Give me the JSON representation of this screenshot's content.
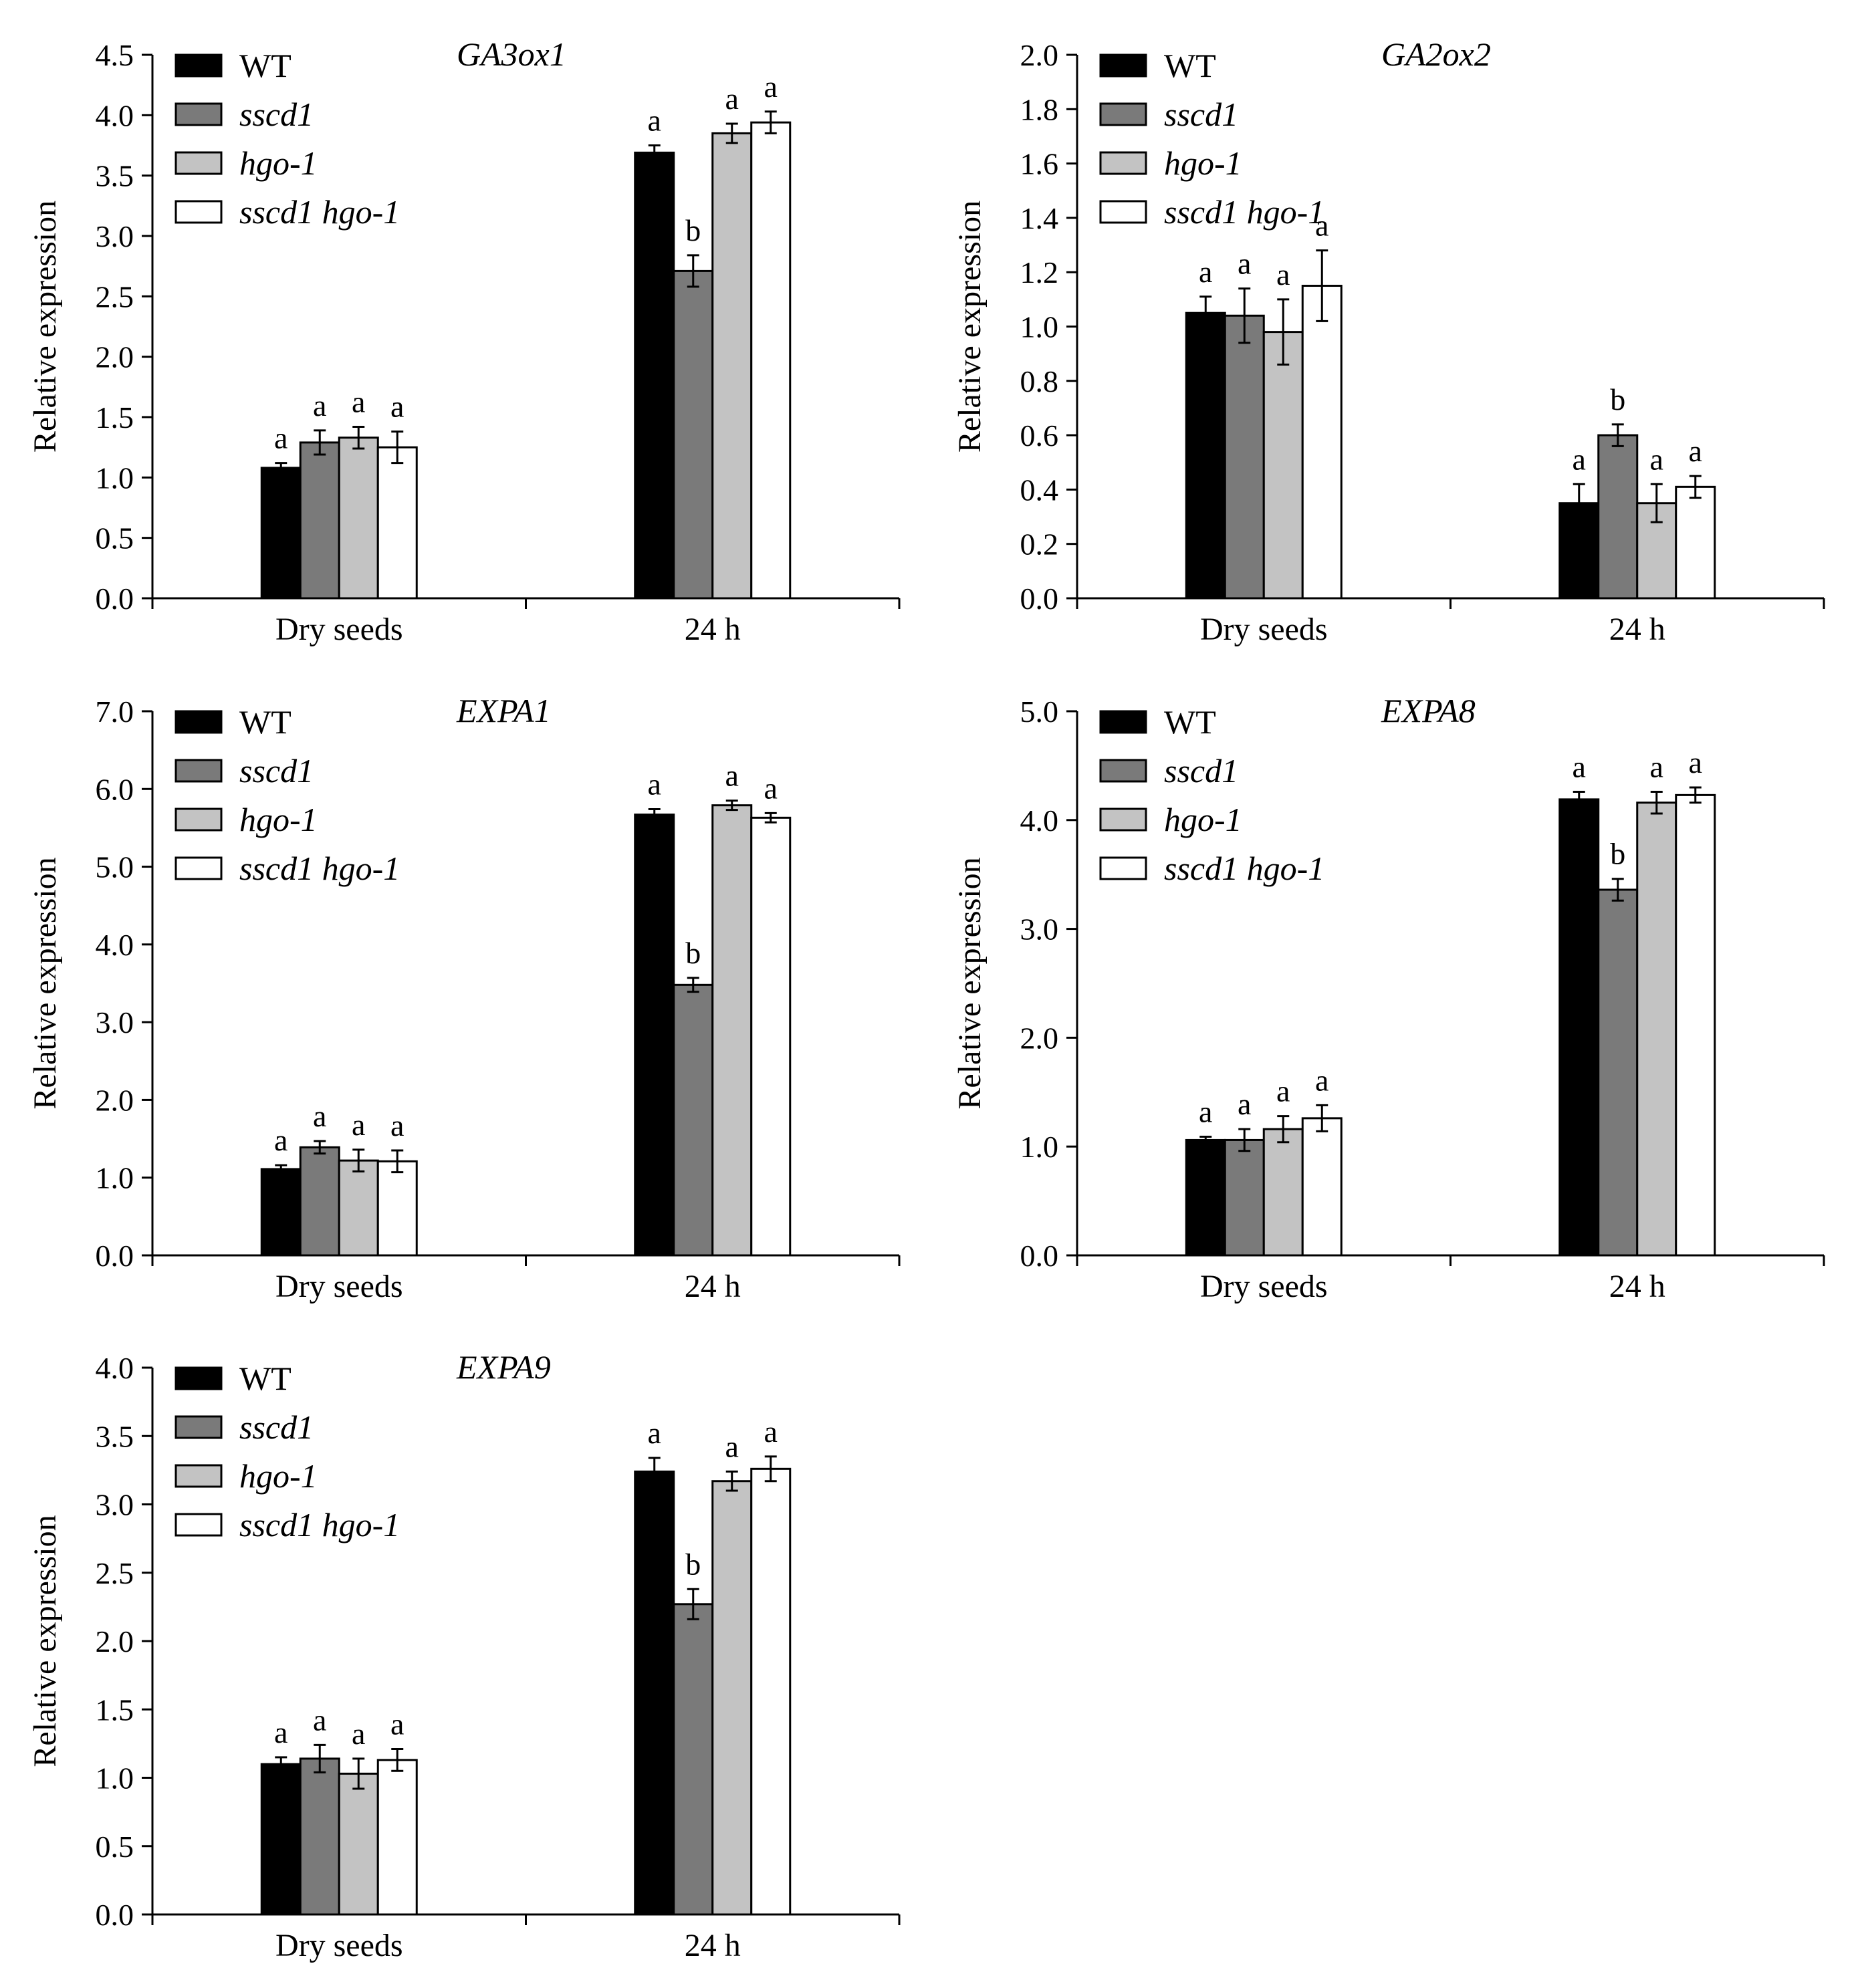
{
  "chart_data": [
    {
      "type": "bar",
      "title": "GA3ox1",
      "ylabel": "Relative expression",
      "xlabel": "",
      "categories": [
        "Dry seeds",
        "24 h"
      ],
      "ylim": [
        0,
        4.5
      ],
      "yticks": [
        0.0,
        0.5,
        1.0,
        1.5,
        2.0,
        2.5,
        3.0,
        3.5,
        4.0,
        4.5
      ],
      "tick_decimals": 1,
      "legend_position": "top-left",
      "series": [
        {
          "name": "WT",
          "color": "#000000",
          "italic": false,
          "values": [
            1.08,
            3.69
          ],
          "errors": [
            0.04,
            0.06
          ],
          "letters": [
            "a",
            "a"
          ]
        },
        {
          "name": "sscd1",
          "color": "#7a7a7a",
          "italic": true,
          "values": [
            1.29,
            2.71
          ],
          "errors": [
            0.1,
            0.13
          ],
          "letters": [
            "a",
            "b"
          ]
        },
        {
          "name": "hgo-1",
          "color": "#c3c3c3",
          "italic": true,
          "values": [
            1.33,
            3.85
          ],
          "errors": [
            0.09,
            0.08
          ],
          "letters": [
            "a",
            "a"
          ]
        },
        {
          "name": "sscd1 hgo-1",
          "color": "#ffffff",
          "italic": true,
          "values": [
            1.25,
            3.94
          ],
          "errors": [
            0.13,
            0.09
          ],
          "letters": [
            "a",
            "a"
          ]
        }
      ]
    },
    {
      "type": "bar",
      "title": "GA2ox2",
      "ylabel": "Relative expression",
      "xlabel": "",
      "categories": [
        "Dry seeds",
        "24 h"
      ],
      "ylim": [
        0,
        2.0
      ],
      "yticks": [
        0.0,
        0.2,
        0.4,
        0.6,
        0.8,
        1.0,
        1.2,
        1.4,
        1.6,
        1.8,
        2.0
      ],
      "tick_decimals": 1,
      "legend_position": "top-left",
      "series": [
        {
          "name": "WT",
          "color": "#000000",
          "italic": false,
          "values": [
            1.05,
            0.35
          ],
          "errors": [
            0.06,
            0.07
          ],
          "letters": [
            "a",
            "a"
          ]
        },
        {
          "name": "sscd1",
          "color": "#7a7a7a",
          "italic": true,
          "values": [
            1.04,
            0.6
          ],
          "errors": [
            0.1,
            0.04
          ],
          "letters": [
            "a",
            "b"
          ]
        },
        {
          "name": "hgo-1",
          "color": "#c3c3c3",
          "italic": true,
          "values": [
            0.98,
            0.35
          ],
          "errors": [
            0.12,
            0.07
          ],
          "letters": [
            "a",
            "a"
          ]
        },
        {
          "name": "sscd1 hgo-1",
          "color": "#ffffff",
          "italic": true,
          "values": [
            1.15,
            0.41
          ],
          "errors": [
            0.13,
            0.04
          ],
          "letters": [
            "a",
            "a"
          ]
        }
      ]
    },
    {
      "type": "bar",
      "title": "EXPA1",
      "ylabel": "Relative expression",
      "xlabel": "",
      "categories": [
        "Dry seeds",
        "24 h"
      ],
      "ylim": [
        0,
        7.0
      ],
      "yticks": [
        0.0,
        1.0,
        2.0,
        3.0,
        4.0,
        5.0,
        6.0,
        7.0
      ],
      "tick_decimals": 1,
      "legend_position": "top-left",
      "series": [
        {
          "name": "WT",
          "color": "#000000",
          "italic": false,
          "values": [
            1.11,
            5.67
          ],
          "errors": [
            0.05,
            0.07
          ],
          "letters": [
            "a",
            "a"
          ]
        },
        {
          "name": "sscd1",
          "color": "#7a7a7a",
          "italic": true,
          "values": [
            1.39,
            3.48
          ],
          "errors": [
            0.08,
            0.09
          ],
          "letters": [
            "a",
            "b"
          ]
        },
        {
          "name": "hgo-1",
          "color": "#c3c3c3",
          "italic": true,
          "values": [
            1.22,
            5.79
          ],
          "errors": [
            0.14,
            0.06
          ],
          "letters": [
            "a",
            "a"
          ]
        },
        {
          "name": "sscd1 hgo-1",
          "color": "#ffffff",
          "italic": true,
          "values": [
            1.21,
            5.63
          ],
          "errors": [
            0.14,
            0.06
          ],
          "letters": [
            "a",
            "a"
          ]
        }
      ]
    },
    {
      "type": "bar",
      "title": "EXPA8",
      "ylabel": "Relative expression",
      "xlabel": "",
      "categories": [
        "Dry seeds",
        "24 h"
      ],
      "ylim": [
        0,
        5.0
      ],
      "yticks": [
        0.0,
        1.0,
        2.0,
        3.0,
        4.0,
        5.0
      ],
      "tick_decimals": 1,
      "legend_position": "top-left",
      "series": [
        {
          "name": "WT",
          "color": "#000000",
          "italic": false,
          "values": [
            1.06,
            4.19
          ],
          "errors": [
            0.03,
            0.07
          ],
          "letters": [
            "a",
            "a"
          ]
        },
        {
          "name": "sscd1",
          "color": "#7a7a7a",
          "italic": true,
          "values": [
            1.06,
            3.36
          ],
          "errors": [
            0.1,
            0.1
          ],
          "letters": [
            "a",
            "b"
          ]
        },
        {
          "name": "hgo-1",
          "color": "#c3c3c3",
          "italic": true,
          "values": [
            1.16,
            4.16
          ],
          "errors": [
            0.12,
            0.1
          ],
          "letters": [
            "a",
            "a"
          ]
        },
        {
          "name": "sscd1 hgo-1",
          "color": "#ffffff",
          "italic": true,
          "values": [
            1.26,
            4.23
          ],
          "errors": [
            0.12,
            0.07
          ],
          "letters": [
            "a",
            "a"
          ]
        }
      ]
    },
    {
      "type": "bar",
      "title": "EXPA9",
      "ylabel": "Relative expression",
      "xlabel": "",
      "categories": [
        "Dry seeds",
        "24 h"
      ],
      "ylim": [
        0,
        4.0
      ],
      "yticks": [
        0.0,
        0.5,
        1.0,
        1.5,
        2.0,
        2.5,
        3.0,
        3.5,
        4.0
      ],
      "tick_decimals": 1,
      "legend_position": "top-left",
      "series": [
        {
          "name": "WT",
          "color": "#000000",
          "italic": false,
          "values": [
            1.1,
            3.24
          ],
          "errors": [
            0.05,
            0.1
          ],
          "letters": [
            "a",
            "a"
          ]
        },
        {
          "name": "sscd1",
          "color": "#7a7a7a",
          "italic": true,
          "values": [
            1.14,
            2.27
          ],
          "errors": [
            0.1,
            0.11
          ],
          "letters": [
            "a",
            "b"
          ]
        },
        {
          "name": "hgo-1",
          "color": "#c3c3c3",
          "italic": true,
          "values": [
            1.03,
            3.17
          ],
          "errors": [
            0.11,
            0.07
          ],
          "letters": [
            "a",
            "a"
          ]
        },
        {
          "name": "sscd1 hgo-1",
          "color": "#ffffff",
          "italic": true,
          "values": [
            1.13,
            3.26
          ],
          "errors": [
            0.08,
            0.09
          ],
          "letters": [
            "a",
            "a"
          ]
        }
      ]
    }
  ]
}
